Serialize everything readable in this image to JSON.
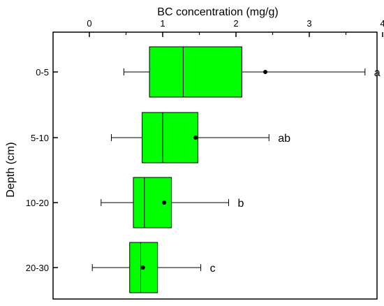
{
  "chart_data": {
    "type": "box",
    "orientation": "horizontal",
    "xlabel": "BC concentration (mg/g)",
    "ylabel": "Depth (cm)",
    "xlim": [
      -0.5,
      4.0
    ],
    "xticks": [
      "0",
      "1",
      "2",
      "3",
      "4"
    ],
    "box_color": "#00ff00",
    "grid": false,
    "categories": [
      "0-5",
      "5-10",
      "10-20",
      "20-30"
    ],
    "boxes": [
      {
        "category": "0-5",
        "whisker_low": 0.47,
        "q1": 0.82,
        "median": 1.28,
        "q3": 2.08,
        "whisker_high": 3.76,
        "mean": 2.4,
        "significance": "a"
      },
      {
        "category": "5-10",
        "whisker_low": 0.3,
        "q1": 0.72,
        "median": 1.0,
        "q3": 1.48,
        "whisker_high": 2.45,
        "mean": 1.45,
        "significance": "ab"
      },
      {
        "category": "10-20",
        "whisker_low": 0.16,
        "q1": 0.6,
        "median": 0.75,
        "q3": 1.12,
        "whisker_high": 1.9,
        "mean": 1.02,
        "significance": "b"
      },
      {
        "category": "20-30",
        "whisker_low": 0.04,
        "q1": 0.55,
        "median": 0.7,
        "q3": 0.93,
        "whisker_high": 1.52,
        "mean": 0.73,
        "significance": "c"
      }
    ]
  }
}
